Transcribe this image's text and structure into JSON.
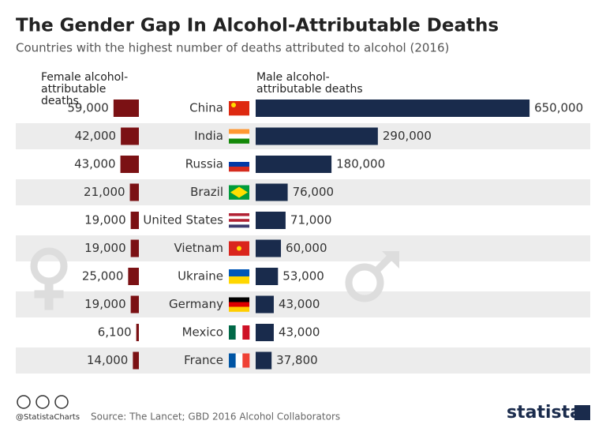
{
  "chart_data": {
    "type": "bar",
    "title": "The Gender Gap In Alcohol-Attributable Deaths",
    "subtitle": "Countries with the highest number of deaths attributed to alcohol (2016)",
    "categories": [
      "China",
      "India",
      "Russia",
      "Brazil",
      "United States",
      "Vietnam",
      "Ukraine",
      "Germany",
      "Mexico",
      "France"
    ],
    "series": [
      {
        "name": "Female alcohol-attributable deaths",
        "color": "#7b1114",
        "values": [
          59000,
          42000,
          43000,
          21000,
          19000,
          19000,
          25000,
          19000,
          6100,
          14000
        ],
        "value_labels": [
          "59,000",
          "42,000",
          "43,000",
          "21,000",
          "19,000",
          "19,000",
          "25,000",
          "19,000",
          "6,100",
          "14,000"
        ]
      },
      {
        "name": "Male alcohol-attributable deaths",
        "color": "#192b4c",
        "values": [
          650000,
          290000,
          180000,
          76000,
          71000,
          60000,
          53000,
          43000,
          43000,
          37800
        ],
        "value_labels": [
          "650,000",
          "290,000",
          "180,000",
          "76,000",
          "71,000",
          "60,000",
          "53,000",
          "43,000",
          "43,000",
          "37,800"
        ]
      }
    ],
    "handle": "@StatistaCharts",
    "source": "Source: The Lancet; GBD 2016 Alcohol Collaborators",
    "brand": "statista"
  }
}
